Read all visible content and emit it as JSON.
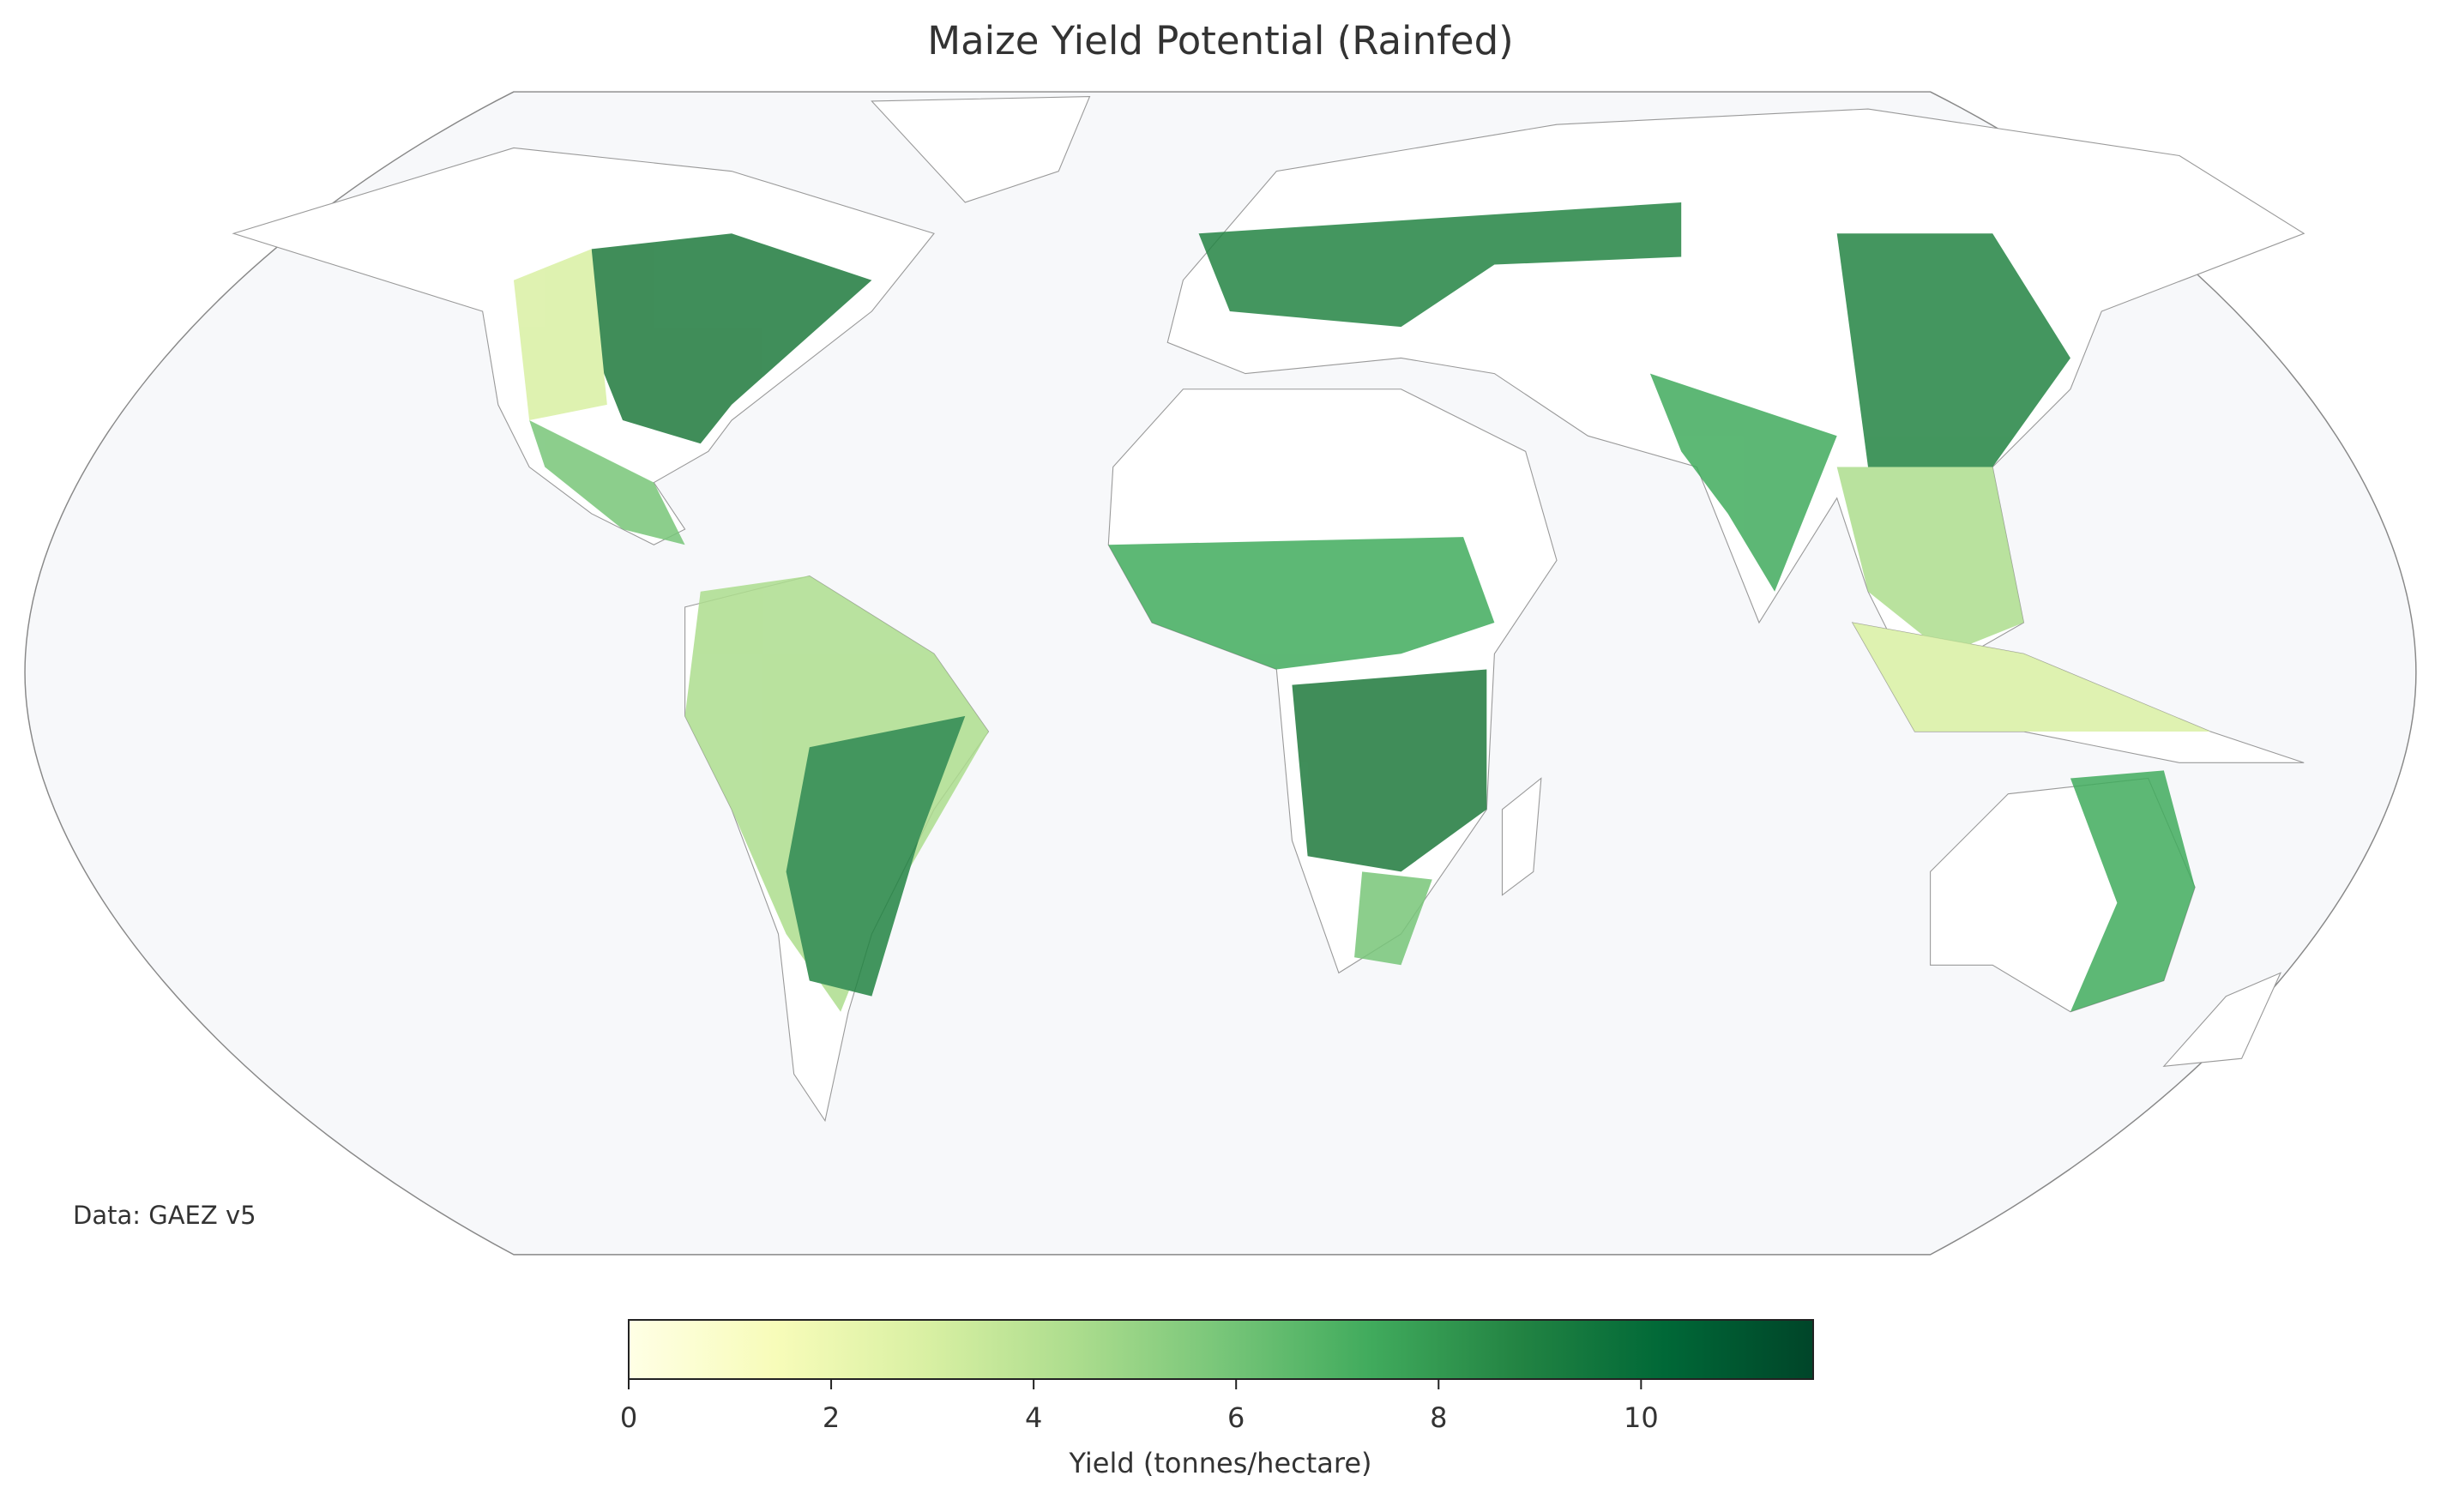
{
  "chart_data": {
    "type": "choropleth-map",
    "title": "Maize Yield Potential (Rainfed)",
    "annotation": "Data: GAEZ v5",
    "colorbar": {
      "label": "Yield (tonnes/hectare)",
      "lim": [
        0,
        11.7
      ],
      "ticks": [
        0,
        2,
        4,
        6,
        8,
        10
      ],
      "colormap": [
        "#ffffe5",
        "#f7fcb9",
        "#d9f0a3",
        "#addd8e",
        "#78c679",
        "#41ab5d",
        "#238443",
        "#006837",
        "#004529"
      ]
    }
  }
}
